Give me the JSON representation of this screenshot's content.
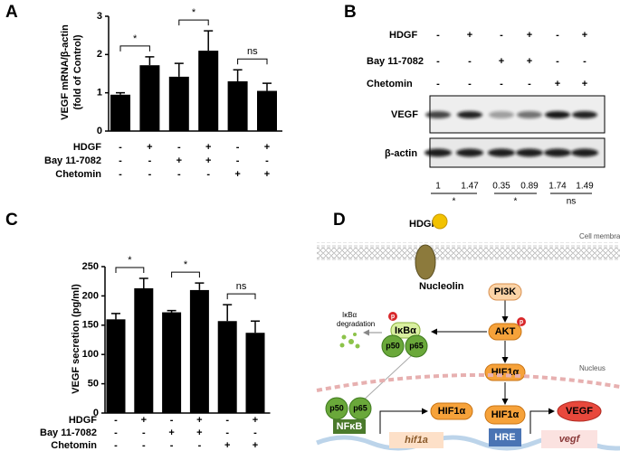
{
  "panel_labels": [
    "A",
    "B",
    "C",
    "D"
  ],
  "chart_data": [
    {
      "type": "bar",
      "ylabel": [
        "VEGF mRNA/β-actin",
        "(fold of Control)"
      ],
      "categories": [
        null,
        null,
        null,
        null,
        null,
        null
      ],
      "values": [
        0.95,
        1.72,
        1.42,
        2.1,
        1.3,
        1.05
      ],
      "errors": [
        0.05,
        0.22,
        0.35,
        0.52,
        0.3,
        0.2
      ],
      "color": "#000000",
      "ylim": [
        0,
        3
      ],
      "yticks": [
        0,
        1,
        2,
        3
      ],
      "conditions": [
        {
          "name": "HDGF",
          "values": [
            "-",
            "+",
            "-",
            "+",
            "-",
            "+"
          ]
        },
        {
          "name": "Bay 11-7082",
          "values": [
            "-",
            "-",
            "+",
            "+",
            "-",
            "-"
          ]
        },
        {
          "name": "Chetomin",
          "values": [
            "-",
            "-",
            "-",
            "-",
            "+",
            "+"
          ]
        }
      ],
      "annotations": [
        "*",
        "*",
        "ns"
      ]
    },
    {
      "type": "bar",
      "ylabel": [
        "VEGF secretion (pg/ml)"
      ],
      "categories": [
        null,
        null,
        null,
        null,
        null,
        null
      ],
      "values": [
        160,
        213,
        172,
        210,
        157,
        137
      ],
      "errors": [
        10,
        17,
        3,
        12,
        28,
        20
      ],
      "color": "#000000",
      "ylim": [
        0,
        250
      ],
      "yticks": [
        0,
        50,
        100,
        150,
        200,
        250
      ],
      "conditions": [
        {
          "name": "HDGF",
          "values": [
            "-",
            "+",
            "-",
            "+",
            "-",
            "+"
          ]
        },
        {
          "name": "Bay 11-7082",
          "values": [
            "-",
            "-",
            "+",
            "+",
            "-",
            "-"
          ]
        },
        {
          "name": "Chetomin",
          "values": [
            "-",
            "-",
            "-",
            "-",
            "+",
            "+"
          ]
        }
      ],
      "annotations": [
        "*",
        "*",
        "ns"
      ]
    }
  ],
  "blot": {
    "conditions": [
      {
        "name": "HDGF",
        "values": [
          "-",
          "+",
          "-",
          "+",
          "-",
          "+"
        ]
      },
      {
        "name": "Bay 11-7082",
        "values": [
          "-",
          "-",
          "+",
          "+",
          "-",
          "-"
        ]
      },
      {
        "name": "Chetomin",
        "values": [
          "-",
          "-",
          "-",
          "-",
          "+",
          "+"
        ]
      }
    ],
    "bands": [
      "VEGF",
      "β-actin"
    ],
    "quantification": [
      1,
      1.47,
      0.35,
      0.89,
      1.74,
      1.49
    ],
    "significance": [
      "*",
      "*",
      "ns"
    ]
  },
  "diagram": {
    "hdgf": "HDGF",
    "cell_membrane": "Cell membrane",
    "nucleolin": "Nucleolin",
    "pi3k": "PI3K",
    "akt": "AKT",
    "p1": "p",
    "p2": "p",
    "ikba_degradation": [
      "IκBα",
      "degradation"
    ],
    "ikba": "IκBα",
    "p50": "p50",
    "p65": "p65",
    "hif1a_cyto": "HIF1α",
    "nucleus": "Nucleus",
    "p50_n": "p50",
    "p65_n": "p65",
    "nfkb": "NFκB",
    "hif1a_gene": "hif1a",
    "hif1a_prod": "HIF1α",
    "hif1a_nuc": "HIF1α",
    "hre": "HRE",
    "vegf_gene": "vegf",
    "vegf_prod": "VEGF"
  }
}
